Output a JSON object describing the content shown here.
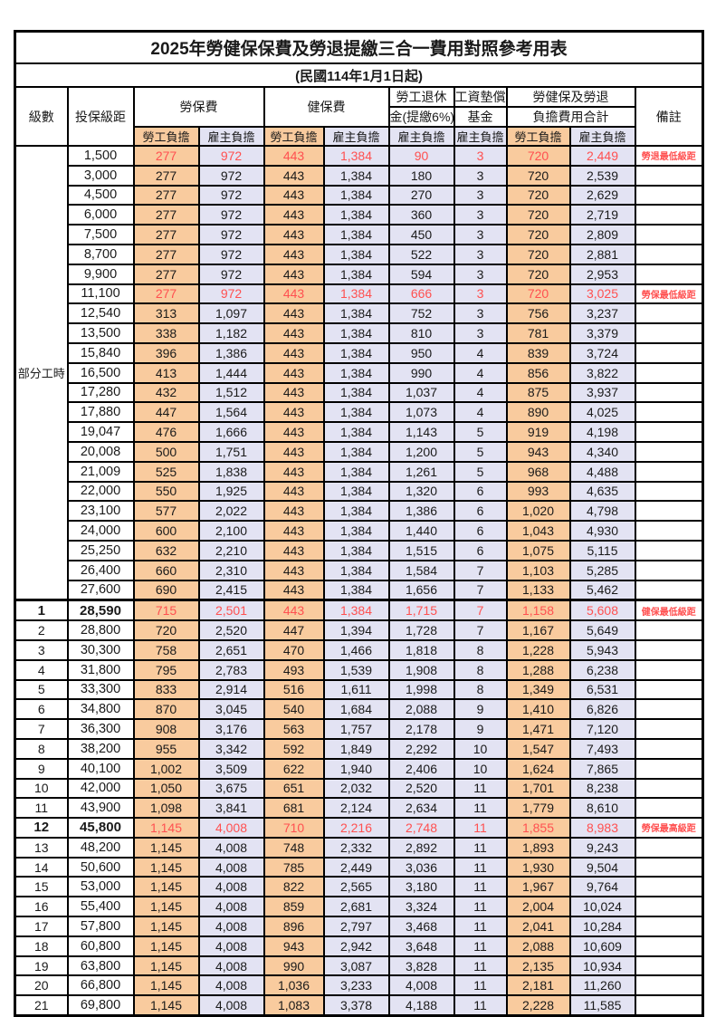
{
  "title": "2025年勞健保保費及勞退提繳三合一費用對照參考用表",
  "subtitle": "(民國114年1月1日起)",
  "header": {
    "level": "級數",
    "bracket": "投保級距",
    "labor_insurance": "勞保費",
    "health_insurance": "健保費",
    "pension_line1": "勞工退休",
    "pension_line2": "金(提繳6%)",
    "wage_fund_line1": "工資墊償",
    "wage_fund_line2": "基金",
    "total_line1": "勞健保及勞退",
    "total_line2": "負擔費用合計",
    "remark": "備註",
    "employee_share": "勞工負擔",
    "employer_share": "雇主負擔"
  },
  "part_time_label": "部分工時",
  "colors": {
    "employee_col_bg": "#F9CB9E",
    "employer_col_bg": "#E3E3F3",
    "highlight_text": "#FF5050",
    "border": "#000000"
  },
  "rows": [
    {
      "level": "",
      "bracket": "1,500",
      "li_emp": "277",
      "li_er": "972",
      "hi_emp": "443",
      "hi_er": "1,384",
      "pension": "90",
      "wage": "3",
      "tot_emp": "720",
      "tot_er": "2,449",
      "remark": "勞退最低級距",
      "highlight": true
    },
    {
      "level": "",
      "bracket": "3,000",
      "li_emp": "277",
      "li_er": "972",
      "hi_emp": "443",
      "hi_er": "1,384",
      "pension": "180",
      "wage": "3",
      "tot_emp": "720",
      "tot_er": "2,539",
      "remark": ""
    },
    {
      "level": "",
      "bracket": "4,500",
      "li_emp": "277",
      "li_er": "972",
      "hi_emp": "443",
      "hi_er": "1,384",
      "pension": "270",
      "wage": "3",
      "tot_emp": "720",
      "tot_er": "2,629",
      "remark": ""
    },
    {
      "level": "",
      "bracket": "6,000",
      "li_emp": "277",
      "li_er": "972",
      "hi_emp": "443",
      "hi_er": "1,384",
      "pension": "360",
      "wage": "3",
      "tot_emp": "720",
      "tot_er": "2,719",
      "remark": ""
    },
    {
      "level": "",
      "bracket": "7,500",
      "li_emp": "277",
      "li_er": "972",
      "hi_emp": "443",
      "hi_er": "1,384",
      "pension": "450",
      "wage": "3",
      "tot_emp": "720",
      "tot_er": "2,809",
      "remark": ""
    },
    {
      "level": "",
      "bracket": "8,700",
      "li_emp": "277",
      "li_er": "972",
      "hi_emp": "443",
      "hi_er": "1,384",
      "pension": "522",
      "wage": "3",
      "tot_emp": "720",
      "tot_er": "2,881",
      "remark": ""
    },
    {
      "level": "",
      "bracket": "9,900",
      "li_emp": "277",
      "li_er": "972",
      "hi_emp": "443",
      "hi_er": "1,384",
      "pension": "594",
      "wage": "3",
      "tot_emp": "720",
      "tot_er": "2,953",
      "remark": ""
    },
    {
      "level": "",
      "bracket": "11,100",
      "li_emp": "277",
      "li_er": "972",
      "hi_emp": "443",
      "hi_er": "1,384",
      "pension": "666",
      "wage": "3",
      "tot_emp": "720",
      "tot_er": "3,025",
      "remark": "勞保最低級距",
      "highlight": true
    },
    {
      "level": "",
      "bracket": "12,540",
      "li_emp": "313",
      "li_er": "1,097",
      "hi_emp": "443",
      "hi_er": "1,384",
      "pension": "752",
      "wage": "3",
      "tot_emp": "756",
      "tot_er": "3,237",
      "remark": ""
    },
    {
      "level": "",
      "bracket": "13,500",
      "li_emp": "338",
      "li_er": "1,182",
      "hi_emp": "443",
      "hi_er": "1,384",
      "pension": "810",
      "wage": "3",
      "tot_emp": "781",
      "tot_er": "3,379",
      "remark": ""
    },
    {
      "level": "",
      "bracket": "15,840",
      "li_emp": "396",
      "li_er": "1,386",
      "hi_emp": "443",
      "hi_er": "1,384",
      "pension": "950",
      "wage": "4",
      "tot_emp": "839",
      "tot_er": "3,724",
      "remark": ""
    },
    {
      "level": "",
      "bracket": "16,500",
      "li_emp": "413",
      "li_er": "1,444",
      "hi_emp": "443",
      "hi_er": "1,384",
      "pension": "990",
      "wage": "4",
      "tot_emp": "856",
      "tot_er": "3,822",
      "remark": ""
    },
    {
      "level": "",
      "bracket": "17,280",
      "li_emp": "432",
      "li_er": "1,512",
      "hi_emp": "443",
      "hi_er": "1,384",
      "pension": "1,037",
      "wage": "4",
      "tot_emp": "875",
      "tot_er": "3,937",
      "remark": ""
    },
    {
      "level": "",
      "bracket": "17,880",
      "li_emp": "447",
      "li_er": "1,564",
      "hi_emp": "443",
      "hi_er": "1,384",
      "pension": "1,073",
      "wage": "4",
      "tot_emp": "890",
      "tot_er": "4,025",
      "remark": ""
    },
    {
      "level": "",
      "bracket": "19,047",
      "li_emp": "476",
      "li_er": "1,666",
      "hi_emp": "443",
      "hi_er": "1,384",
      "pension": "1,143",
      "wage": "5",
      "tot_emp": "919",
      "tot_er": "4,198",
      "remark": ""
    },
    {
      "level": "",
      "bracket": "20,008",
      "li_emp": "500",
      "li_er": "1,751",
      "hi_emp": "443",
      "hi_er": "1,384",
      "pension": "1,200",
      "wage": "5",
      "tot_emp": "943",
      "tot_er": "4,340",
      "remark": ""
    },
    {
      "level": "",
      "bracket": "21,009",
      "li_emp": "525",
      "li_er": "1,838",
      "hi_emp": "443",
      "hi_er": "1,384",
      "pension": "1,261",
      "wage": "5",
      "tot_emp": "968",
      "tot_er": "4,488",
      "remark": ""
    },
    {
      "level": "",
      "bracket": "22,000",
      "li_emp": "550",
      "li_er": "1,925",
      "hi_emp": "443",
      "hi_er": "1,384",
      "pension": "1,320",
      "wage": "6",
      "tot_emp": "993",
      "tot_er": "4,635",
      "remark": ""
    },
    {
      "level": "",
      "bracket": "23,100",
      "li_emp": "577",
      "li_er": "2,022",
      "hi_emp": "443",
      "hi_er": "1,384",
      "pension": "1,386",
      "wage": "6",
      "tot_emp": "1,020",
      "tot_er": "4,798",
      "remark": ""
    },
    {
      "level": "",
      "bracket": "24,000",
      "li_emp": "600",
      "li_er": "2,100",
      "hi_emp": "443",
      "hi_er": "1,384",
      "pension": "1,440",
      "wage": "6",
      "tot_emp": "1,043",
      "tot_er": "4,930",
      "remark": ""
    },
    {
      "level": "",
      "bracket": "25,250",
      "li_emp": "632",
      "li_er": "2,210",
      "hi_emp": "443",
      "hi_er": "1,384",
      "pension": "1,515",
      "wage": "6",
      "tot_emp": "1,075",
      "tot_er": "5,115",
      "remark": ""
    },
    {
      "level": "",
      "bracket": "26,400",
      "li_emp": "660",
      "li_er": "2,310",
      "hi_emp": "443",
      "hi_er": "1,384",
      "pension": "1,584",
      "wage": "7",
      "tot_emp": "1,103",
      "tot_er": "5,285",
      "remark": ""
    },
    {
      "level": "",
      "bracket": "27,600",
      "li_emp": "690",
      "li_er": "2,415",
      "hi_emp": "443",
      "hi_er": "1,384",
      "pension": "1,656",
      "wage": "7",
      "tot_emp": "1,133",
      "tot_er": "5,462",
      "remark": ""
    },
    {
      "level": "1",
      "bracket": "28,590",
      "li_emp": "715",
      "li_er": "2,501",
      "hi_emp": "443",
      "hi_er": "1,384",
      "pension": "1,715",
      "wage": "7",
      "tot_emp": "1,158",
      "tot_er": "5,608",
      "remark": "健保最低級距",
      "highlight": true,
      "bold": true,
      "thick_top": true
    },
    {
      "level": "2",
      "bracket": "28,800",
      "li_emp": "720",
      "li_er": "2,520",
      "hi_emp": "447",
      "hi_er": "1,394",
      "pension": "1,728",
      "wage": "7",
      "tot_emp": "1,167",
      "tot_er": "5,649",
      "remark": ""
    },
    {
      "level": "3",
      "bracket": "30,300",
      "li_emp": "758",
      "li_er": "2,651",
      "hi_emp": "470",
      "hi_er": "1,466",
      "pension": "1,818",
      "wage": "8",
      "tot_emp": "1,228",
      "tot_er": "5,943",
      "remark": ""
    },
    {
      "level": "4",
      "bracket": "31,800",
      "li_emp": "795",
      "li_er": "2,783",
      "hi_emp": "493",
      "hi_er": "1,539",
      "pension": "1,908",
      "wage": "8",
      "tot_emp": "1,288",
      "tot_er": "6,238",
      "remark": ""
    },
    {
      "level": "5",
      "bracket": "33,300",
      "li_emp": "833",
      "li_er": "2,914",
      "hi_emp": "516",
      "hi_er": "1,611",
      "pension": "1,998",
      "wage": "8",
      "tot_emp": "1,349",
      "tot_er": "6,531",
      "remark": ""
    },
    {
      "level": "6",
      "bracket": "34,800",
      "li_emp": "870",
      "li_er": "3,045",
      "hi_emp": "540",
      "hi_er": "1,684",
      "pension": "2,088",
      "wage": "9",
      "tot_emp": "1,410",
      "tot_er": "6,826",
      "remark": ""
    },
    {
      "level": "7",
      "bracket": "36,300",
      "li_emp": "908",
      "li_er": "3,176",
      "hi_emp": "563",
      "hi_er": "1,757",
      "pension": "2,178",
      "wage": "9",
      "tot_emp": "1,471",
      "tot_er": "7,120",
      "remark": ""
    },
    {
      "level": "8",
      "bracket": "38,200",
      "li_emp": "955",
      "li_er": "3,342",
      "hi_emp": "592",
      "hi_er": "1,849",
      "pension": "2,292",
      "wage": "10",
      "tot_emp": "1,547",
      "tot_er": "7,493",
      "remark": ""
    },
    {
      "level": "9",
      "bracket": "40,100",
      "li_emp": "1,002",
      "li_er": "3,509",
      "hi_emp": "622",
      "hi_er": "1,940",
      "pension": "2,406",
      "wage": "10",
      "tot_emp": "1,624",
      "tot_er": "7,865",
      "remark": ""
    },
    {
      "level": "10",
      "bracket": "42,000",
      "li_emp": "1,050",
      "li_er": "3,675",
      "hi_emp": "651",
      "hi_er": "2,032",
      "pension": "2,520",
      "wage": "11",
      "tot_emp": "1,701",
      "tot_er": "8,238",
      "remark": ""
    },
    {
      "level": "11",
      "bracket": "43,900",
      "li_emp": "1,098",
      "li_er": "3,841",
      "hi_emp": "681",
      "hi_er": "2,124",
      "pension": "2,634",
      "wage": "11",
      "tot_emp": "1,779",
      "tot_er": "8,610",
      "remark": ""
    },
    {
      "level": "12",
      "bracket": "45,800",
      "li_emp": "1,145",
      "li_er": "4,008",
      "hi_emp": "710",
      "hi_er": "2,216",
      "pension": "2,748",
      "wage": "11",
      "tot_emp": "1,855",
      "tot_er": "8,983",
      "remark": "勞保最高級距",
      "highlight": true,
      "bold": true
    },
    {
      "level": "13",
      "bracket": "48,200",
      "li_emp": "1,145",
      "li_er": "4,008",
      "hi_emp": "748",
      "hi_er": "2,332",
      "pension": "2,892",
      "wage": "11",
      "tot_emp": "1,893",
      "tot_er": "9,243",
      "remark": ""
    },
    {
      "level": "14",
      "bracket": "50,600",
      "li_emp": "1,145",
      "li_er": "4,008",
      "hi_emp": "785",
      "hi_er": "2,449",
      "pension": "3,036",
      "wage": "11",
      "tot_emp": "1,930",
      "tot_er": "9,504",
      "remark": ""
    },
    {
      "level": "15",
      "bracket": "53,000",
      "li_emp": "1,145",
      "li_er": "4,008",
      "hi_emp": "822",
      "hi_er": "2,565",
      "pension": "3,180",
      "wage": "11",
      "tot_emp": "1,967",
      "tot_er": "9,764",
      "remark": ""
    },
    {
      "level": "16",
      "bracket": "55,400",
      "li_emp": "1,145",
      "li_er": "4,008",
      "hi_emp": "859",
      "hi_er": "2,681",
      "pension": "3,324",
      "wage": "11",
      "tot_emp": "2,004",
      "tot_er": "10,024",
      "remark": ""
    },
    {
      "level": "17",
      "bracket": "57,800",
      "li_emp": "1,145",
      "li_er": "4,008",
      "hi_emp": "896",
      "hi_er": "2,797",
      "pension": "3,468",
      "wage": "11",
      "tot_emp": "2,041",
      "tot_er": "10,284",
      "remark": ""
    },
    {
      "level": "18",
      "bracket": "60,800",
      "li_emp": "1,145",
      "li_er": "4,008",
      "hi_emp": "943",
      "hi_er": "2,942",
      "pension": "3,648",
      "wage": "11",
      "tot_emp": "2,088",
      "tot_er": "10,609",
      "remark": ""
    },
    {
      "level": "19",
      "bracket": "63,800",
      "li_emp": "1,145",
      "li_er": "4,008",
      "hi_emp": "990",
      "hi_er": "3,087",
      "pension": "3,828",
      "wage": "11",
      "tot_emp": "2,135",
      "tot_er": "10,934",
      "remark": ""
    },
    {
      "level": "20",
      "bracket": "66,800",
      "li_emp": "1,145",
      "li_er": "4,008",
      "hi_emp": "1,036",
      "hi_er": "3,233",
      "pension": "4,008",
      "wage": "11",
      "tot_emp": "2,181",
      "tot_er": "11,260",
      "remark": ""
    },
    {
      "level": "21",
      "bracket": "69,800",
      "li_emp": "1,145",
      "li_er": "4,008",
      "hi_emp": "1,083",
      "hi_er": "3,378",
      "pension": "4,188",
      "wage": "11",
      "tot_emp": "2,228",
      "tot_er": "11,585",
      "remark": ""
    }
  ]
}
